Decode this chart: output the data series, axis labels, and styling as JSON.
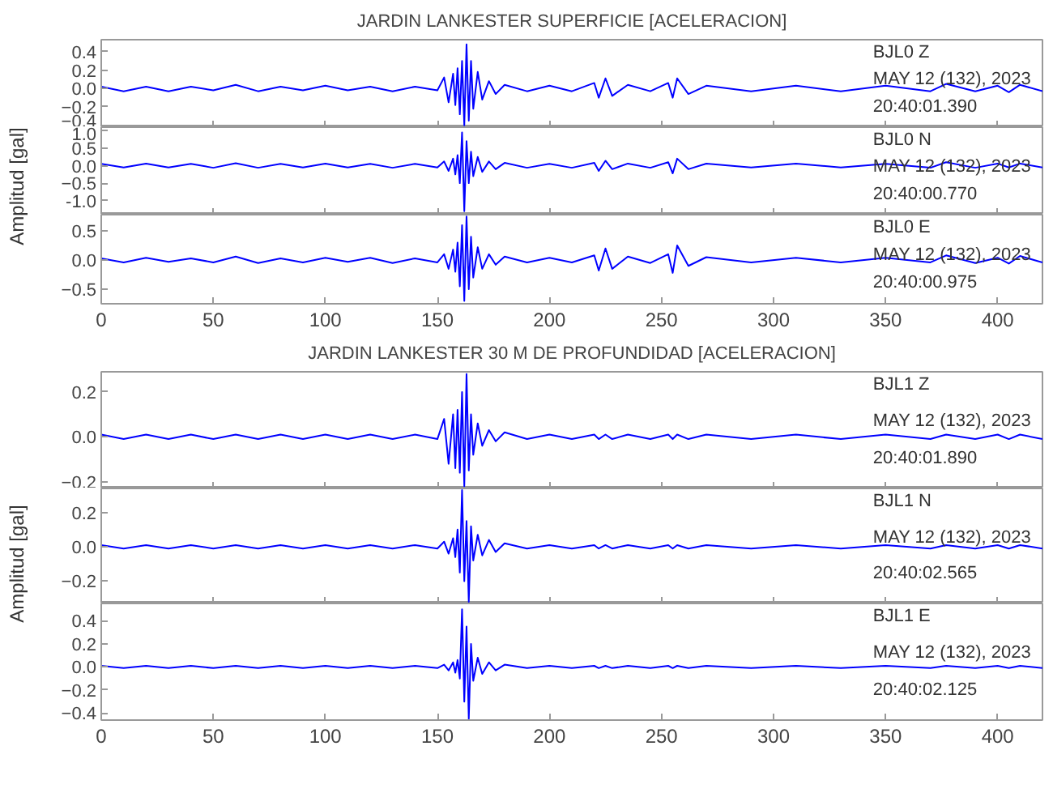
{
  "chart_data": [
    {
      "type": "line",
      "title": "JARDIN LANKESTER SUPERFICIE [ACELERACION]",
      "tick_labels": "y",
      "xlim": [
        0,
        420
      ],
      "xticks": [
        0,
        50,
        100,
        150,
        200,
        250,
        300,
        350,
        400
      ],
      "ylim": [
        -0.42,
        0.53
      ],
      "yticks": [
        -0.4,
        -0.2,
        {
          "value": 0,
          "label": "0.0"
        },
        0.2,
        0.4
      ],
      "annotations": [
        "BJL0   Z",
        "MAY 12 (132), 2023",
        "20:40:01.390"
      ],
      "x": [
        0,
        10,
        20,
        30,
        40,
        50,
        60,
        70,
        80,
        90,
        100,
        110,
        120,
        130,
        140,
        150,
        153,
        155,
        157,
        158,
        159,
        160,
        161,
        162,
        163,
        164,
        165,
        166,
        168,
        170,
        173,
        176,
        180,
        190,
        200,
        210,
        220,
        222,
        225,
        228,
        235,
        245,
        253,
        255,
        257,
        262,
        270,
        290,
        310,
        330,
        350,
        370,
        377,
        390,
        400,
        405,
        410,
        420
      ],
      "series": [
        {
          "color": "#0000ff",
          "values": [
            0.02,
            -0.03,
            0.02,
            -0.03,
            0.02,
            -0.02,
            0.04,
            -0.03,
            0.02,
            -0.02,
            0.03,
            -0.02,
            0.02,
            -0.03,
            0.02,
            -0.02,
            0.12,
            -0.15,
            0.16,
            -0.18,
            0.22,
            -0.28,
            0.3,
            -0.4,
            0.48,
            -0.35,
            0.3,
            -0.22,
            0.18,
            -0.12,
            0.08,
            -0.06,
            0.04,
            -0.03,
            0.03,
            -0.03,
            0.06,
            -0.1,
            0.11,
            -0.08,
            0.04,
            -0.03,
            0.06,
            -0.1,
            0.11,
            -0.06,
            0.03,
            -0.03,
            0.03,
            -0.03,
            0.03,
            -0.03,
            0.05,
            -0.03,
            0.03,
            -0.04,
            0.04,
            -0.03
          ]
        }
      ]
    },
    {
      "type": "line",
      "ylabel": "Amplitud [gal]",
      "tick_labels": "y",
      "xlim": [
        0,
        420
      ],
      "xticks": [
        0,
        50,
        100,
        150,
        200,
        250,
        300,
        350,
        400
      ],
      "ylim": [
        -1.4,
        1.1
      ],
      "yticks": [
        {
          "value": -1,
          "label": "-1.0"
        },
        -0.5,
        {
          "value": 0,
          "label": "0.0"
        },
        0.5,
        {
          "value": 1,
          "label": "1.0"
        }
      ],
      "annotations": [
        "BJL0   N",
        "MAY 12 (132), 2023",
        "20:40:00.770"
      ],
      "x": [
        0,
        10,
        20,
        30,
        40,
        50,
        60,
        70,
        80,
        90,
        100,
        110,
        120,
        130,
        140,
        150,
        153,
        155,
        157,
        158,
        159,
        160,
        161,
        162,
        163,
        164,
        165,
        166,
        168,
        170,
        173,
        176,
        180,
        190,
        200,
        210,
        220,
        222,
        225,
        228,
        235,
        245,
        253,
        255,
        257,
        262,
        270,
        290,
        310,
        330,
        350,
        370,
        377,
        390,
        400,
        405,
        410,
        420
      ],
      "series": [
        {
          "color": "#0000ff",
          "values": [
            0.05,
            -0.05,
            0.06,
            -0.05,
            0.05,
            -0.06,
            0.07,
            -0.06,
            0.05,
            -0.05,
            0.06,
            -0.05,
            0.05,
            -0.06,
            0.05,
            -0.05,
            0.12,
            -0.15,
            0.2,
            -0.25,
            0.3,
            -0.5,
            0.95,
            -1.3,
            0.7,
            -0.5,
            0.4,
            -0.3,
            0.25,
            -0.18,
            0.12,
            -0.1,
            0.08,
            -0.06,
            0.05,
            -0.06,
            0.08,
            -0.15,
            0.14,
            -0.1,
            0.06,
            -0.06,
            0.1,
            -0.22,
            0.2,
            -0.1,
            0.06,
            -0.05,
            0.06,
            -0.05,
            0.05,
            -0.06,
            0.1,
            -0.06,
            0.06,
            -0.05,
            0.06,
            -0.05
          ]
        }
      ]
    },
    {
      "type": "line",
      "xlim": [
        0,
        420
      ],
      "xticks": [
        0,
        50,
        100,
        150,
        200,
        250,
        300,
        350,
        400
      ],
      "ylim": [
        -0.75,
        0.78
      ],
      "yticks": [
        -0.5,
        {
          "value": 0,
          "label": "0.0"
        },
        0.5
      ],
      "annotations": [
        "BJL0   E",
        "MAY 12 (132), 2023",
        "20:40:00.975"
      ],
      "x": [
        0,
        10,
        20,
        30,
        40,
        50,
        60,
        70,
        80,
        90,
        100,
        110,
        120,
        130,
        140,
        150,
        153,
        155,
        157,
        158,
        159,
        160,
        161,
        162,
        163,
        164,
        165,
        166,
        168,
        170,
        173,
        176,
        180,
        190,
        200,
        210,
        220,
        222,
        225,
        228,
        235,
        245,
        253,
        255,
        257,
        262,
        270,
        290,
        310,
        330,
        350,
        370,
        377,
        390,
        400,
        405,
        410,
        420
      ],
      "series": [
        {
          "color": "#0000ff",
          "values": [
            0.03,
            -0.04,
            0.04,
            -0.03,
            0.03,
            -0.04,
            0.06,
            -0.05,
            0.03,
            -0.04,
            0.04,
            -0.03,
            0.04,
            -0.05,
            0.03,
            -0.04,
            0.1,
            -0.15,
            0.18,
            -0.2,
            0.3,
            -0.45,
            0.6,
            -0.7,
            0.75,
            -0.5,
            0.4,
            -0.3,
            0.22,
            -0.15,
            0.1,
            -0.08,
            0.06,
            -0.04,
            0.04,
            -0.04,
            0.08,
            -0.18,
            0.2,
            -0.15,
            0.06,
            -0.05,
            0.1,
            -0.22,
            0.25,
            -0.1,
            0.05,
            -0.04,
            0.04,
            -0.04,
            0.04,
            -0.04,
            0.08,
            -0.05,
            0.04,
            -0.06,
            0.07,
            -0.04
          ]
        }
      ]
    },
    {
      "type": "line",
      "title": "JARDIN LANKESTER 30 M DE PROFUNDIDAD [ACELERACION]",
      "tick_labels": "y",
      "xlim": [
        0,
        420
      ],
      "xticks": [
        0,
        50,
        100,
        150,
        200,
        250,
        300,
        350,
        400
      ],
      "ylim": [
        -0.23,
        0.29
      ],
      "yticks": [
        -0.2,
        {
          "value": 0,
          "label": "0.0"
        },
        0.2
      ],
      "annotations": [
        "BJL1   Z",
        "MAY 12 (132), 2023",
        "20:40:01.890"
      ],
      "x": [
        0,
        10,
        20,
        30,
        40,
        50,
        60,
        70,
        80,
        90,
        100,
        110,
        120,
        130,
        140,
        150,
        153,
        155,
        157,
        158,
        159,
        160,
        161,
        162,
        163,
        164,
        165,
        166,
        168,
        170,
        173,
        176,
        180,
        190,
        200,
        210,
        220,
        222,
        225,
        228,
        235,
        245,
        253,
        255,
        257,
        262,
        270,
        290,
        310,
        330,
        350,
        370,
        377,
        390,
        400,
        405,
        410,
        420
      ],
      "series": [
        {
          "color": "#0000ff",
          "values": [
            0.01,
            -0.01,
            0.01,
            -0.01,
            0.01,
            -0.01,
            0.01,
            -0.01,
            0.01,
            -0.01,
            0.01,
            -0.01,
            0.01,
            -0.01,
            0.01,
            -0.01,
            0.08,
            -0.12,
            0.1,
            -0.14,
            0.12,
            -0.16,
            0.2,
            -0.22,
            0.28,
            -0.15,
            0.1,
            -0.08,
            0.06,
            -0.04,
            0.03,
            -0.02,
            0.02,
            -0.01,
            0.01,
            -0.01,
            0.01,
            -0.01,
            0.01,
            -0.01,
            0.01,
            -0.01,
            0.01,
            -0.01,
            0.01,
            -0.01,
            0.01,
            -0.01,
            0.01,
            -0.01,
            0.01,
            -0.01,
            0.01,
            -0.01,
            0.01,
            -0.01,
            0.01,
            -0.01
          ]
        }
      ]
    },
    {
      "type": "line",
      "ylabel": "Amplitud [gal]",
      "tick_labels": "y",
      "xlim": [
        0,
        420
      ],
      "xticks": [
        0,
        50,
        100,
        150,
        200,
        250,
        300,
        350,
        400
      ],
      "ylim": [
        -0.33,
        0.34
      ],
      "yticks": [
        -0.2,
        {
          "value": 0,
          "label": "0.0"
        },
        0.2
      ],
      "annotations": [
        "BJL1   N",
        "MAY 12 (132), 2023",
        "20:40:02.565"
      ],
      "x": [
        0,
        10,
        20,
        30,
        40,
        50,
        60,
        70,
        80,
        90,
        100,
        110,
        120,
        130,
        140,
        150,
        153,
        155,
        157,
        158,
        159,
        160,
        161,
        162,
        163,
        164,
        165,
        166,
        168,
        170,
        173,
        176,
        180,
        190,
        200,
        210,
        220,
        222,
        225,
        228,
        235,
        245,
        253,
        255,
        257,
        262,
        270,
        290,
        310,
        330,
        350,
        370,
        377,
        390,
        400,
        405,
        410,
        420
      ],
      "series": [
        {
          "color": "#0000ff",
          "values": [
            0.01,
            -0.01,
            0.01,
            -0.01,
            0.01,
            -0.01,
            0.01,
            -0.01,
            0.01,
            -0.01,
            0.01,
            -0.01,
            0.01,
            -0.01,
            0.01,
            -0.01,
            0.03,
            -0.04,
            0.05,
            -0.06,
            0.1,
            -0.15,
            0.33,
            -0.2,
            0.15,
            -0.32,
            0.12,
            -0.08,
            0.07,
            -0.05,
            0.04,
            -0.03,
            0.02,
            -0.01,
            0.01,
            -0.01,
            0.01,
            -0.01,
            0.01,
            -0.01,
            0.01,
            -0.01,
            0.01,
            -0.01,
            0.01,
            -0.01,
            0.01,
            -0.01,
            0.01,
            -0.01,
            0.01,
            -0.01,
            0.01,
            -0.01,
            0.01,
            -0.01,
            0.01,
            -0.01
          ]
        }
      ]
    },
    {
      "type": "line",
      "xlim": [
        0,
        420
      ],
      "xticks": [
        0,
        50,
        100,
        150,
        200,
        250,
        300,
        350,
        400
      ],
      "ylim": [
        -0.46,
        0.55
      ],
      "yticks": [
        -0.4,
        -0.2,
        {
          "value": 0,
          "label": "0.0"
        },
        0.2,
        0.4
      ],
      "annotations": [
        "BJL1   E",
        "MAY 12 (132), 2023",
        "20:40:02.125"
      ],
      "x": [
        0,
        10,
        20,
        30,
        40,
        50,
        60,
        70,
        80,
        90,
        100,
        110,
        120,
        130,
        140,
        150,
        153,
        155,
        157,
        158,
        159,
        160,
        161,
        162,
        163,
        164,
        165,
        166,
        168,
        170,
        173,
        176,
        180,
        190,
        200,
        210,
        220,
        222,
        225,
        228,
        235,
        245,
        253,
        255,
        257,
        262,
        270,
        290,
        310,
        330,
        350,
        370,
        377,
        390,
        400,
        405,
        410,
        420
      ],
      "series": [
        {
          "color": "#0000ff",
          "values": [
            0.01,
            -0.01,
            0.01,
            -0.01,
            0.01,
            -0.01,
            0.01,
            -0.01,
            0.01,
            -0.01,
            0.01,
            -0.01,
            0.01,
            -0.01,
            0.01,
            -0.01,
            0.02,
            -0.03,
            0.04,
            -0.05,
            0.06,
            -0.1,
            0.5,
            -0.3,
            0.35,
            -0.45,
            0.2,
            -0.12,
            0.08,
            -0.06,
            0.04,
            -0.03,
            0.02,
            -0.01,
            0.01,
            -0.01,
            0.01,
            -0.01,
            0.01,
            -0.01,
            0.01,
            -0.01,
            0.01,
            -0.01,
            0.01,
            -0.01,
            0.01,
            -0.01,
            0.01,
            -0.01,
            0.01,
            -0.01,
            0.01,
            -0.01,
            0.01,
            -0.01,
            0.01,
            -0.01
          ]
        }
      ]
    }
  ]
}
